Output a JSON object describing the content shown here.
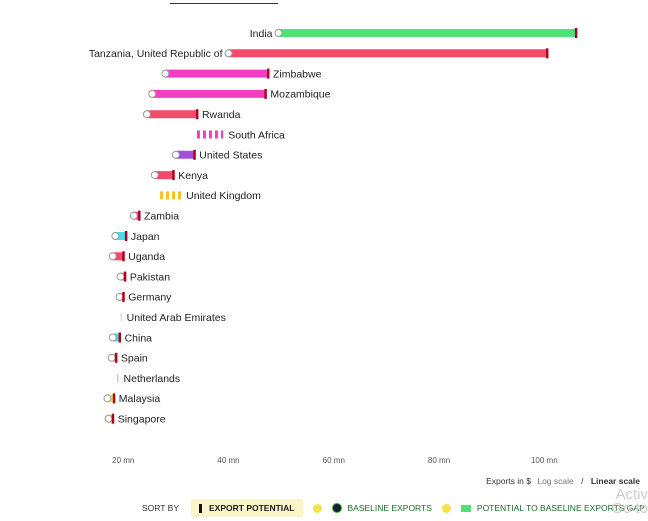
{
  "chart_data": {
    "type": "dumbbell",
    "x_scale": "log",
    "x_unit": "mn",
    "x_ticks": [
      {
        "value": 20,
        "label": "20 mn"
      },
      {
        "value": 40,
        "label": "40 mn"
      },
      {
        "value": 60,
        "label": "60 mn"
      },
      {
        "value": 80,
        "label": "80 mn"
      },
      {
        "value": 100,
        "label": "100 mn"
      }
    ],
    "rows": [
      {
        "country": "India",
        "baseline": 49.5,
        "potential": 106.0,
        "color": "#4de27a",
        "label_side": "left",
        "style": "solid"
      },
      {
        "country": "Tanzania, United Republic of",
        "baseline": 40.0,
        "potential": 100.5,
        "color": "#f44b6b",
        "label_side": "left",
        "style": "solid"
      },
      {
        "country": "Zimbabwe",
        "baseline": 28.0,
        "potential": 47.5,
        "color": "#f03fc5",
        "label_side": "right",
        "style": "solid"
      },
      {
        "country": "Mozambique",
        "baseline": 25.5,
        "potential": 47.0,
        "color": "#f03fc5",
        "label_side": "right",
        "style": "solid"
      },
      {
        "country": "Rwanda",
        "baseline": 24.5,
        "potential": 34.0,
        "color": "#f44b6b",
        "label_side": "right",
        "style": "solid"
      },
      {
        "country": "South Africa",
        "baseline": 34.0,
        "potential": 39.0,
        "color": "#f03fc5",
        "label_side": "right",
        "style": "dashed"
      },
      {
        "country": "United States",
        "baseline": 30.0,
        "potential": 33.5,
        "color": "#a24fe0",
        "label_side": "right",
        "style": "solid"
      },
      {
        "country": "Kenya",
        "baseline": 26.0,
        "potential": 29.5,
        "color": "#f44b6b",
        "label_side": "right",
        "style": "solid"
      },
      {
        "country": "United Kingdom",
        "baseline": 27.0,
        "potential": 31.0,
        "color": "#f0c419",
        "label_side": "right",
        "style": "dashed"
      },
      {
        "country": "Zambia",
        "baseline": 22.0,
        "potential": 23.0,
        "color": "#f03fc5",
        "label_side": "right",
        "style": "solid"
      },
      {
        "country": "Japan",
        "baseline": 18.5,
        "potential": 20.5,
        "color": "#3fe0e8",
        "label_side": "right",
        "style": "solid"
      },
      {
        "country": "Uganda",
        "baseline": 18.0,
        "potential": 20.0,
        "color": "#f44b6b",
        "label_side": "right",
        "style": "solid"
      },
      {
        "country": "Pakistan",
        "baseline": 19.5,
        "potential": 20.3,
        "color": "#4de27a",
        "label_side": "right",
        "style": "solid"
      },
      {
        "country": "Germany",
        "baseline": 19.3,
        "potential": 20.0,
        "color": "#f3e24d",
        "label_side": "right",
        "style": "solid"
      },
      {
        "country": "United Arab Emirates",
        "baseline": 19.5,
        "potential": 19.7,
        "color": "#cccccc",
        "label_side": "right",
        "style": "dashed"
      },
      {
        "country": "China",
        "baseline": 18.0,
        "potential": 19.3,
        "color": "#3fe0e8",
        "label_side": "right",
        "style": "solid"
      },
      {
        "country": "Spain",
        "baseline": 17.8,
        "potential": 18.6,
        "color": "#f3e24d",
        "label_side": "right",
        "style": "solid"
      },
      {
        "country": "Netherlands",
        "baseline": 18.8,
        "potential": 19.1,
        "color": "#cccccc",
        "label_side": "right",
        "style": "dashed"
      },
      {
        "country": "Malaysia",
        "baseline": 17.0,
        "potential": 18.2,
        "color": "#f3e24d",
        "label_side": "right",
        "style": "solid"
      },
      {
        "country": "Singapore",
        "baseline": 17.2,
        "potential": 18.0,
        "color": "#f3e24d",
        "label_side": "right",
        "style": "solid"
      }
    ]
  },
  "controls": {
    "axis_caption": "Exports in $",
    "log_label": "Log scale",
    "linear_label": "Linear scale",
    "separator": "/",
    "sort_label": "SORT BY",
    "sort_options": [
      "EXPORT POTENTIAL",
      "BASELINE EXPORTS",
      "POTENTIAL TO BASELINE EXPORTS GAP"
    ]
  },
  "colors": {
    "dot_fill": "#ffffff",
    "dot_stroke": "#999999",
    "marker": "#b00020"
  },
  "watermark": {
    "line1": "Activ",
    "line2": "Go to"
  }
}
